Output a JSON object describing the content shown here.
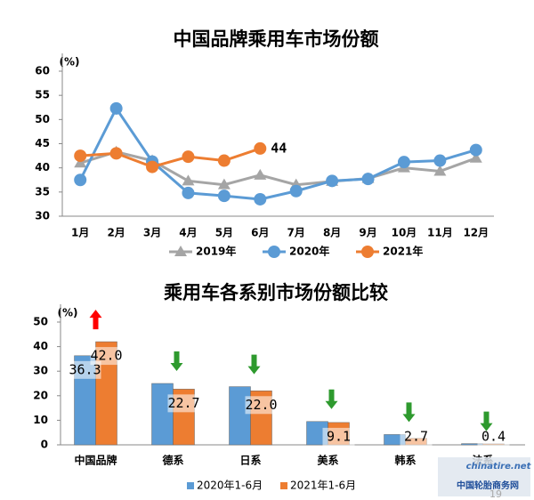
{
  "chart_data": [
    {
      "type": "line",
      "title": "中国品牌乘用车市场份额",
      "y_label": "(%)",
      "categories": [
        "1月",
        "2月",
        "3月",
        "4月",
        "5月",
        "6月",
        "7月",
        "8月",
        "9月",
        "10月",
        "11月",
        "12月"
      ],
      "series": [
        {
          "name": "2019年",
          "color": "#a5a5a5",
          "marker": "triangle",
          "values": [
            41,
            43.3,
            41.5,
            37.3,
            36.5,
            38.5,
            36.5,
            37.2,
            37.8,
            40,
            39.3,
            42
          ]
        },
        {
          "name": "2020年",
          "color": "#5b9bd5",
          "marker": "circle",
          "values": [
            37.5,
            52.3,
            41.3,
            34.8,
            34.2,
            33.5,
            35.2,
            37.3,
            37.7,
            41.2,
            41.5,
            43.7
          ]
        },
        {
          "name": "2021年",
          "color": "#ed7d31",
          "marker": "circle",
          "label_last": true,
          "values": [
            42.5,
            43,
            40.2,
            42.3,
            41.5,
            44,
            null,
            null,
            null,
            null,
            null,
            null
          ]
        }
      ],
      "ylim": [
        30,
        60
      ],
      "yticks": [
        30,
        35,
        40,
        45,
        50,
        55,
        60
      ],
      "legend": "bottom"
    },
    {
      "type": "bar",
      "title": "乘用车各系别市场份额比较",
      "y_label": "(%)",
      "categories": [
        "中国品牌",
        "德系",
        "日系",
        "美系",
        "韩系",
        "法系"
      ],
      "series": [
        {
          "name": "2020年1-6月",
          "color": "#5b9bd5",
          "values": [
            36.3,
            25,
            23.7,
            9.5,
            4.2,
            0.5
          ],
          "value_labels": [
            "36.3",
            null,
            null,
            null,
            null,
            null
          ]
        },
        {
          "name": "2021年1-6月",
          "color": "#ed7d31",
          "values": [
            42.0,
            22.7,
            22.0,
            9.1,
            2.7,
            0.4
          ],
          "value_labels": [
            "42.0",
            "22.7",
            "22.0",
            "9.1",
            "2.7",
            "0.4"
          ]
        }
      ],
      "ylim": [
        0,
        50
      ],
      "yticks": [
        0,
        10,
        20,
        30,
        40,
        50
      ],
      "legend": "bottom",
      "change_arrows": true
    }
  ],
  "watermark": {
    "site": "chinatire.net",
    "name": "中国轮胎商务网"
  },
  "page_number": "19"
}
